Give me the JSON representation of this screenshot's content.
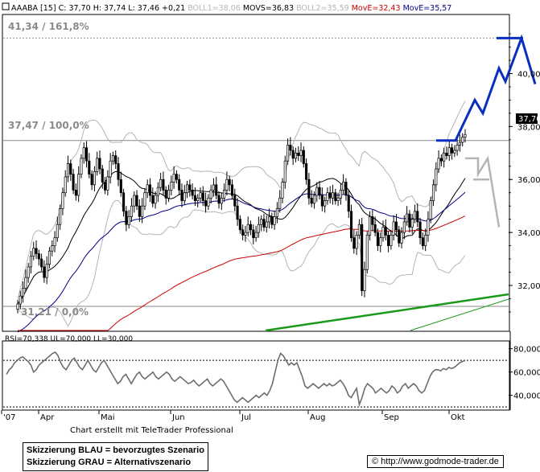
{
  "header": {
    "symbol": "AAABA [15]",
    "c": "C: 37,70",
    "h": "H: 37,74",
    "l": "L: 37,46",
    "chg": "+0,21",
    "boll1": "BOLL1=38,06",
    "movs": "MOVS=36,83",
    "boll2": "BOLL2=35,59",
    "move1": "MovE=32,43",
    "move2": "MovE=35,57"
  },
  "levels": {
    "l1": "41,34 / 161,8%",
    "l2": "37,47 / 100,0%",
    "l3": "31,21 / 0,0%"
  },
  "price_badge": "37,70",
  "rsi_header": "RSI=70,338  UL=70,000  LL=30,000",
  "chart_data": [
    {
      "type": "candlestick",
      "y_ticks": [
        "40,00",
        "38,00",
        "36,00",
        "34,00",
        "32,00"
      ],
      "y_tick_values": [
        40,
        38,
        36,
        34,
        32
      ],
      "ylim": [
        30.3,
        42.2
      ],
      "x_ticks": [
        "'07",
        "Apr",
        "Mai",
        "Jun",
        "Jul",
        "Aug",
        "Sep",
        "Okt"
      ],
      "fib_levels": [
        41.34,
        37.47,
        31.21
      ],
      "close": [
        31.3,
        31.6,
        31.9,
        32.3,
        32.7,
        33.1,
        33.4,
        33.2,
        33.0,
        32.7,
        32.3,
        32.8,
        33.3,
        33.5,
        33.8,
        34.3,
        34.9,
        35.5,
        36.1,
        36.6,
        36.2,
        35.6,
        35.4,
        36.2,
        36.8,
        37.2,
        36.7,
        36.2,
        35.8,
        36.3,
        36.8,
        36.4,
        35.9,
        35.6,
        36.1,
        36.7,
        36.9,
        36.6,
        36.0,
        35.5,
        34.8,
        34.3,
        34.6,
        35.0,
        35.4,
        35.0,
        34.6,
        35.0,
        35.5,
        35.8,
        35.4,
        35.1,
        35.4,
        35.7,
        36.0,
        35.6,
        35.3,
        35.6,
        35.9,
        36.2,
        36.0,
        35.6,
        35.2,
        35.5,
        35.8,
        35.6,
        35.4,
        35.2,
        35.3,
        35.5,
        35.2,
        35.0,
        35.3,
        35.6,
        35.8,
        35.4,
        35.1,
        35.3,
        35.6,
        36.0,
        35.8,
        35.4,
        35.0,
        34.5,
        34.1,
        33.9,
        34.0,
        34.3,
        34.1,
        33.8,
        34.0,
        34.3,
        34.5,
        34.2,
        34.4,
        34.6,
        34.3,
        34.6,
        34.9,
        35.3,
        35.9,
        36.7,
        37.3,
        37.1,
        36.8,
        37.0,
        36.9,
        37.1,
        36.6,
        36.0,
        35.3,
        35.1,
        35.4,
        35.7,
        35.4,
        35.0,
        35.2,
        35.5,
        35.3,
        35.5,
        35.2,
        35.3,
        35.6,
        35.9,
        35.4,
        34.8,
        33.8,
        33.4,
        33.9,
        34.3,
        31.8,
        32.6,
        33.9,
        34.6,
        34.3,
        34.0,
        33.5,
        33.8,
        34.2,
        33.9,
        33.5,
        33.9,
        34.4,
        34.1,
        33.6,
        34.0,
        34.4,
        34.7,
        34.2,
        34.5,
        34.8,
        34.4,
        33.8,
        33.5,
        33.9,
        34.5,
        35.2,
        35.8,
        36.4,
        36.8,
        36.7,
        37.0,
        36.9,
        37.2,
        37.0,
        37.1,
        37.3,
        37.4,
        37.6,
        37.7
      ]
    },
    {
      "type": "line",
      "name": "RSI",
      "y_ticks": [
        "80,000",
        "60,000",
        "40,000"
      ],
      "y_tick_values": [
        80,
        60,
        40
      ],
      "ylim": [
        28,
        86
      ],
      "ul": 70,
      "ll": 30,
      "values": [
        58,
        62,
        64,
        68,
        70,
        72,
        73,
        71,
        69,
        66,
        60,
        62,
        66,
        68,
        70,
        72,
        74,
        76,
        77,
        74,
        68,
        64,
        62,
        66,
        70,
        72,
        68,
        64,
        62,
        66,
        70,
        66,
        62,
        60,
        64,
        68,
        70,
        66,
        62,
        58,
        54,
        50,
        52,
        56,
        58,
        54,
        50,
        54,
        58,
        60,
        56,
        54,
        56,
        58,
        60,
        56,
        54,
        56,
        58,
        60,
        58,
        54,
        52,
        54,
        56,
        54,
        52,
        50,
        51,
        53,
        50,
        48,
        50,
        52,
        54,
        50,
        48,
        50,
        52,
        54,
        52,
        48,
        44,
        40,
        36,
        34,
        36,
        38,
        36,
        34,
        36,
        38,
        40,
        38,
        40,
        42,
        40,
        44,
        50,
        60,
        70,
        76,
        74,
        70,
        66,
        68,
        66,
        68,
        62,
        56,
        48,
        46,
        48,
        50,
        48,
        46,
        48,
        50,
        48,
        50,
        48,
        49,
        51,
        53,
        50,
        46,
        40,
        38,
        42,
        46,
        32,
        38,
        46,
        50,
        48,
        46,
        42,
        44,
        46,
        44,
        42,
        44,
        48,
        46,
        42,
        44,
        48,
        50,
        46,
        48,
        50,
        48,
        44,
        42,
        44,
        50,
        56,
        60,
        62,
        62,
        61,
        63,
        62,
        64,
        63,
        64,
        66,
        68,
        69,
        70
      ]
    }
  ],
  "scenario_blue": "Skizzierung BLAU = bevorzugtes Szenario",
  "scenario_grey": "Skizzierung GRAU = Alternativszenario",
  "credit": "Chart erstellt mit TeleTrader Professional",
  "copyright": "http://www.godmode-trader.de",
  "colors": {
    "blue": "#0a2fc0",
    "grey": "#b4b4b4",
    "green": "#1a9a1a",
    "red": "#cc0000",
    "navy": "#00008b"
  }
}
